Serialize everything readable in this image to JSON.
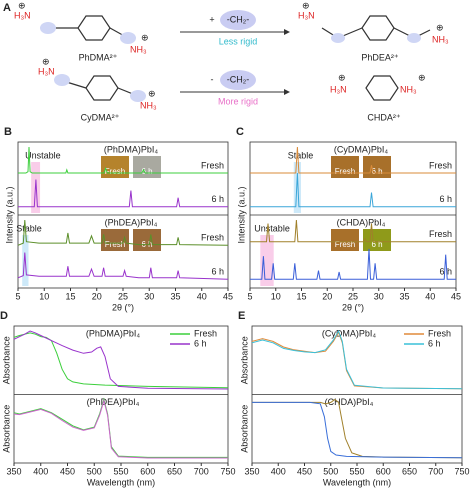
{
  "scheme": {
    "panel": "A",
    "charge": "⊕",
    "reactions": [
      {
        "reactant": {
          "name": "PhDMA²⁺",
          "left": "H₃N",
          "right": "NH₃"
        },
        "operator": "+",
        "group": "-CH₂-",
        "note": "Less rigid",
        "product": {
          "name": "PhDEA²⁺",
          "left": "H₃N",
          "right": "NH₃"
        }
      },
      {
        "reactant": {
          "name": "CyDMA²⁺",
          "left": "H₃N",
          "right": "NH₃"
        },
        "operator": "-",
        "group": "-CH₂-",
        "note": "More rigid",
        "product": {
          "name": "CHDA²⁺",
          "left": "H₃N",
          "right": "NH₃"
        }
      }
    ]
  },
  "chart_data": [
    {
      "type": "line",
      "panel": "B",
      "xlabel": "2θ (°)",
      "ylabel": "Intensity (a.u.)",
      "xlim": [
        5,
        45
      ],
      "xticks": [
        5,
        10,
        15,
        20,
        25,
        30,
        35,
        40,
        45
      ],
      "legend": "trace",
      "subplots": [
        {
          "title": "(PhDMA)PbI₄",
          "annotation": "Unstable",
          "shade": [
            7.5,
            9.2
          ],
          "shade_color": "#f6b8e0",
          "insets": [
            {
              "label": "Fresh",
              "color": "#b5832c"
            },
            {
              "label": "6 h",
              "color": "#a9a9a0"
            }
          ],
          "series": [
            {
              "name": "Fresh",
              "color": "#3ccf3c",
              "x": [
                5,
                6.5,
                6.9,
                7.1,
                7.3,
                7.7,
                14.1,
                14.3,
                14.5,
                21.4,
                21.7,
                22,
                28.6,
                28.9,
                29.2,
                45
              ],
              "values": [
                0.6,
                0.6,
                0.62,
                1.0,
                0.62,
                0.6,
                0.6,
                0.65,
                0.6,
                0.6,
                0.67,
                0.6,
                0.6,
                0.65,
                0.6,
                0.6
              ]
            },
            {
              "name": "6 h",
              "color": "#9933cc",
              "x": [
                5,
                8.1,
                8.4,
                8.7,
                26.2,
                26.5,
                26.8,
                35.2,
                35.5,
                35.8,
                45
              ],
              "values": [
                0.08,
                0.08,
                0.5,
                0.08,
                0.08,
                0.33,
                0.08,
                0.08,
                0.22,
                0.08,
                0.08
              ]
            }
          ]
        },
        {
          "title": "(PhDEA)PbI₄",
          "annotation": "Stable",
          "shade": [
            5.8,
            7.0
          ],
          "shade_color": "#b8e0f6",
          "insets": [
            {
              "label": "Fresh",
              "color": "#9a6a3a"
            },
            {
              "label": "6 h",
              "color": "#9a6a3a"
            }
          ],
          "series": [
            {
              "name": "Fresh",
              "color": "#5c8f2a",
              "x": [
                5,
                6,
                6.3,
                6.6,
                9,
                14.2,
                14.5,
                14.8,
                18.5,
                19,
                19.5,
                21,
                21.3,
                21.6,
                25,
                25.3,
                25.6,
                28,
                30,
                30.3,
                30.6,
                35.2,
                35.5,
                35.8,
                45
              ],
              "values": [
                0.55,
                0.58,
                0.9,
                0.6,
                0.58,
                0.58,
                0.72,
                0.58,
                0.58,
                0.68,
                0.58,
                0.58,
                0.7,
                0.58,
                0.58,
                0.66,
                0.58,
                0.56,
                0.56,
                0.7,
                0.56,
                0.56,
                0.66,
                0.56,
                0.55
              ]
            },
            {
              "name": "6 h",
              "color": "#9933cc",
              "x": [
                5,
                6,
                6.3,
                6.6,
                9,
                14.2,
                14.5,
                14.8,
                18.5,
                19,
                19.5,
                21,
                21.3,
                21.6,
                25,
                25.3,
                25.6,
                28,
                30,
                30.3,
                30.6,
                35.2,
                35.5,
                35.8,
                45
              ],
              "values": [
                0.1,
                0.13,
                0.45,
                0.14,
                0.12,
                0.12,
                0.26,
                0.12,
                0.12,
                0.22,
                0.12,
                0.12,
                0.24,
                0.12,
                0.12,
                0.2,
                0.12,
                0.1,
                0.1,
                0.24,
                0.1,
                0.1,
                0.2,
                0.1,
                0.08
              ]
            }
          ]
        }
      ]
    },
    {
      "type": "line",
      "panel": "C",
      "xlabel": "2θ (°)",
      "ylabel": "Intensity (a.u.)",
      "xlim": [
        5,
        45
      ],
      "xticks": [
        5,
        10,
        15,
        20,
        25,
        30,
        35,
        40,
        45
      ],
      "legend": "trace",
      "subplots": [
        {
          "title": "(CyDMA)PbI₄",
          "annotation": "Stable",
          "shade": [
            13.5,
            14.9
          ],
          "shade_color": "#b8e0f6",
          "insets": [
            {
              "label": "Fresh",
              "color": "#a8702a"
            },
            {
              "label": "6 h",
              "color": "#a8702a"
            }
          ],
          "series": [
            {
              "name": "Fresh",
              "color": "#d98b3a",
              "x": [
                5,
                13.9,
                14.2,
                14.5,
                28.3,
                28.6,
                28.9,
                45
              ],
              "values": [
                0.6,
                0.6,
                1.0,
                0.6,
                0.6,
                0.72,
                0.6,
                0.6
              ]
            },
            {
              "name": "6 h",
              "color": "#3aa6d9",
              "x": [
                5,
                13.9,
                14.2,
                14.5,
                28.3,
                28.6,
                28.9,
                45
              ],
              "values": [
                0.08,
                0.08,
                0.6,
                0.08,
                0.08,
                0.3,
                0.08,
                0.08
              ]
            }
          ]
        },
        {
          "title": "(CHDA)PbI₄",
          "annotation": "Unstable",
          "shade": [
            7,
            9.6
          ],
          "shade_color": "#f6b8e0",
          "insets": [
            {
              "label": "Fresh",
              "color": "#a8702a"
            },
            {
              "label": "6 h",
              "color": "#8f9a1a"
            }
          ],
          "series": [
            {
              "name": "Fresh",
              "color": "#a0802a",
              "x": [
                5,
                8.2,
                8.5,
                8.8,
                13.7,
                14,
                14.3,
                27,
                27.3,
                27.6,
                28.3,
                28.6,
                28.9,
                45
              ],
              "values": [
                0.6,
                0.6,
                0.85,
                0.6,
                0.6,
                0.9,
                0.6,
                0.6,
                0.64,
                0.6,
                0.6,
                0.85,
                0.6,
                0.6
              ]
            },
            {
              "name": "6 h",
              "color": "#3a5fd9",
              "x": [
                5,
                7.3,
                7.6,
                7.9,
                9.2,
                9.5,
                9.8,
                13.4,
                13.7,
                14,
                18,
                18.3,
                18.6,
                22,
                22.3,
                22.6,
                27.8,
                28.1,
                28.4,
                29,
                29.3,
                29.6,
                42.7,
                43,
                43.3,
                45
              ],
              "values": [
                0.08,
                0.08,
                0.4,
                0.08,
                0.08,
                0.3,
                0.08,
                0.08,
                0.3,
                0.08,
                0.08,
                0.2,
                0.08,
                0.08,
                0.18,
                0.08,
                0.08,
                0.5,
                0.08,
                0.08,
                0.3,
                0.08,
                0.08,
                0.42,
                0.08,
                0.08
              ]
            }
          ]
        }
      ]
    },
    {
      "type": "line",
      "panel": "D",
      "xlabel": "Wavelength (nm)",
      "xlim": [
        350,
        750
      ],
      "xticks": [
        350,
        400,
        450,
        500,
        550,
        600,
        650,
        700,
        750
      ],
      "legend": "upper right",
      "subplots": [
        {
          "title": "(PhDMA)PbI₄",
          "ylabel": "Absorbance",
          "series": [
            {
              "name": "Fresh",
              "color": "#3ccf3c",
              "x": [
                350,
                360,
                370,
                380,
                390,
                400,
                410,
                420,
                430,
                440,
                450,
                460,
                480,
                520,
                600,
                750
              ],
              "values": [
                0.85,
                0.88,
                0.9,
                0.92,
                0.9,
                0.86,
                0.85,
                0.8,
                0.6,
                0.35,
                0.2,
                0.15,
                0.12,
                0.1,
                0.08,
                0.06
              ]
            },
            {
              "name": "6 h",
              "color": "#9933cc",
              "x": [
                350,
                360,
                370,
                380,
                390,
                400,
                420,
                440,
                460,
                480,
                495,
                505,
                512,
                520,
                530,
                545,
                600,
                750
              ],
              "values": [
                0.82,
                0.86,
                0.9,
                0.95,
                0.92,
                0.88,
                0.8,
                0.72,
                0.65,
                0.6,
                0.62,
                0.68,
                0.7,
                0.55,
                0.2,
                0.08,
                0.05,
                0.04
              ]
            }
          ]
        },
        {
          "title": "(PhDEA)PbI₄",
          "ylabel": "Absorbance",
          "series": [
            {
              "name": "Fresh",
              "color": "#3ccf3c",
              "x": [
                350,
                360,
                380,
                400,
                420,
                440,
                460,
                480,
                500,
                510,
                518,
                525,
                532,
                545,
                600,
                750
              ],
              "values": [
                0.72,
                0.7,
                0.74,
                0.78,
                0.72,
                0.62,
                0.52,
                0.46,
                0.5,
                0.7,
                0.92,
                0.7,
                0.2,
                0.06,
                0.04,
                0.04
              ]
            },
            {
              "name": "6 h",
              "color": "#cc66cc",
              "x": [
                350,
                360,
                380,
                400,
                420,
                440,
                460,
                480,
                500,
                510,
                518,
                525,
                532,
                545,
                600,
                750
              ],
              "values": [
                0.7,
                0.69,
                0.73,
                0.77,
                0.71,
                0.6,
                0.5,
                0.45,
                0.49,
                0.68,
                0.9,
                0.68,
                0.18,
                0.05,
                0.03,
                0.03
              ]
            }
          ]
        }
      ]
    },
    {
      "type": "line",
      "panel": "E",
      "xlabel": "Wavelength (nm)",
      "xlim": [
        350,
        750
      ],
      "xticks": [
        350,
        400,
        450,
        500,
        550,
        600,
        650,
        700,
        750
      ],
      "legend": "upper right",
      "subplots": [
        {
          "title": "(CyDMA)PbI₄",
          "ylabel": "Absorbance",
          "series": [
            {
              "name": "Fresh",
              "color": "#e08a3a",
              "x": [
                350,
                370,
                390,
                410,
                430,
                450,
                470,
                490,
                505,
                515,
                522,
                530,
                545,
                600,
                750
              ],
              "values": [
                0.72,
                0.76,
                0.72,
                0.64,
                0.6,
                0.58,
                0.56,
                0.58,
                0.72,
                0.85,
                0.7,
                0.3,
                0.08,
                0.05,
                0.04
              ]
            },
            {
              "name": "6 h",
              "color": "#3ac0d9",
              "x": [
                350,
                370,
                390,
                410,
                430,
                450,
                470,
                490,
                505,
                515,
                522,
                530,
                545,
                600,
                750
              ],
              "values": [
                0.7,
                0.74,
                0.7,
                0.62,
                0.59,
                0.57,
                0.56,
                0.6,
                0.74,
                0.87,
                0.72,
                0.32,
                0.09,
                0.05,
                0.04
              ]
            }
          ]
        },
        {
          "title": "(CHDA)PbI₄",
          "ylabel": "Absorbance",
          "series": [
            {
              "name": "Fresh",
              "color": "#a0802a",
              "x": [
                350,
                380,
                420,
                460,
                480,
                490,
                500,
                508,
                515,
                520,
                528,
                540,
                560,
                600,
                750
              ],
              "values": [
                0.8,
                0.8,
                0.8,
                0.8,
                0.8,
                0.78,
                0.8,
                0.84,
                0.8,
                0.6,
                0.3,
                0.1,
                0.05,
                0.04,
                0.03
              ]
            },
            {
              "name": "6 h",
              "color": "#3a6fd9",
              "x": [
                350,
                380,
                420,
                460,
                480,
                488,
                494,
                500,
                510,
                530,
                600,
                750
              ],
              "values": [
                0.8,
                0.8,
                0.8,
                0.8,
                0.78,
                0.6,
                0.3,
                0.12,
                0.07,
                0.05,
                0.04,
                0.03
              ]
            }
          ]
        }
      ]
    }
  ]
}
